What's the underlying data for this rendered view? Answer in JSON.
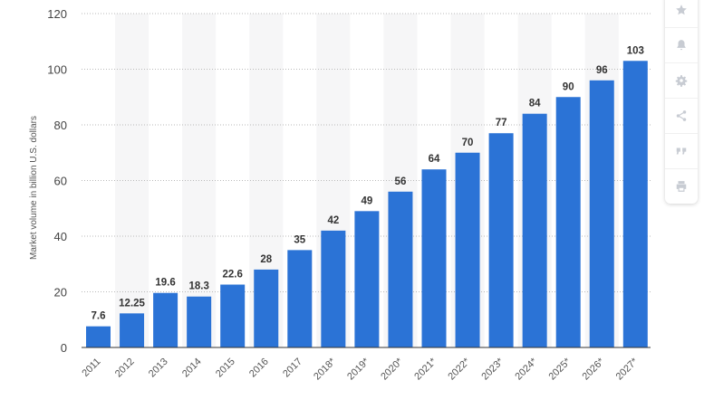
{
  "chart_data": {
    "type": "bar",
    "categories": [
      "2011",
      "2012",
      "2013",
      "2014",
      "2015",
      "2016",
      "2017",
      "2018*",
      "2019*",
      "2020*",
      "2021*",
      "2022*",
      "2023*",
      "2024*",
      "2025*",
      "2026*",
      "2027*"
    ],
    "values": [
      7.6,
      12.25,
      19.6,
      18.3,
      22.6,
      28,
      35,
      42,
      49,
      56,
      64,
      70,
      77,
      84,
      90,
      96,
      103
    ],
    "value_labels": [
      "7.6",
      "12.25",
      "19.6",
      "18.3",
      "22.6",
      "28",
      "35",
      "42",
      "49",
      "56",
      "64",
      "70",
      "77",
      "84",
      "90",
      "96",
      "103"
    ],
    "ylabel": "Market volume in billion U.S. dollars",
    "xlabel": "",
    "ylim": [
      0,
      120
    ],
    "yticks": [
      "0",
      "20",
      "40",
      "60",
      "80",
      "100",
      "120"
    ],
    "grid": true,
    "bar_color": "#2b73d6",
    "band_color": "#f6f6f7"
  },
  "toolbar": {
    "icons": [
      "star-icon",
      "bell-icon",
      "gear-icon",
      "share-icon",
      "quote-icon",
      "print-icon"
    ]
  }
}
